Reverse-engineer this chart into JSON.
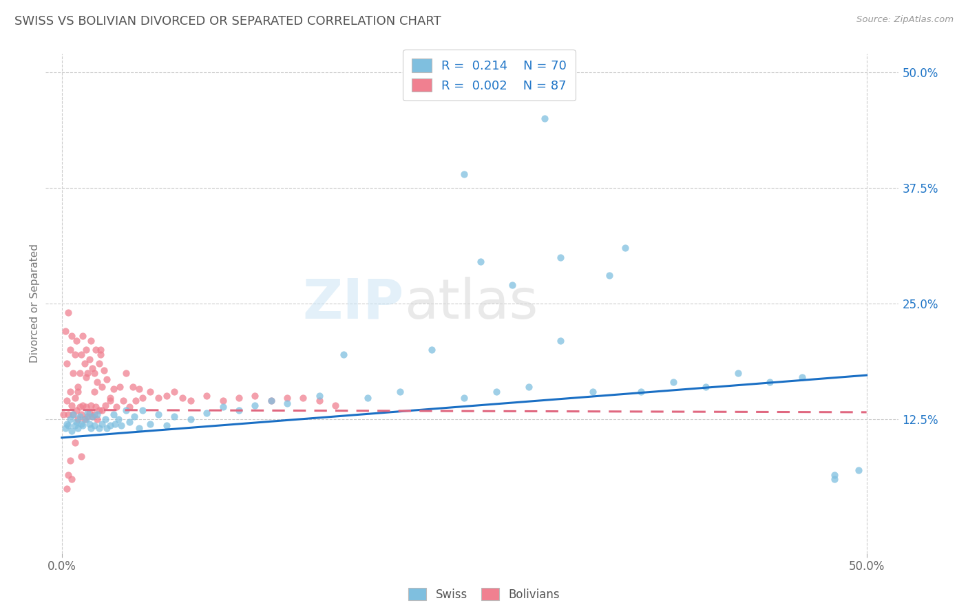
{
  "title": "SWISS VS BOLIVIAN DIVORCED OR SEPARATED CORRELATION CHART",
  "source_text": "Source: ZipAtlas.com",
  "ylabel": "Divorced or Separated",
  "xlim": [
    -0.01,
    0.52
  ],
  "ylim": [
    -0.02,
    0.52
  ],
  "xtick_values": [
    0.0,
    0.125,
    0.25,
    0.375,
    0.5
  ],
  "xtick_show": [
    0.0,
    0.5
  ],
  "ytick_values": [
    0.125,
    0.25,
    0.375,
    0.5
  ],
  "ytick_labels": [
    "12.5%",
    "25.0%",
    "37.5%",
    "50.0%"
  ],
  "swiss_color": "#7fbfdf",
  "bolivian_color": "#f08090",
  "swiss_line_color": "#1a6fc4",
  "bolivian_line_color": "#e06880",
  "swiss_R": "0.214",
  "swiss_N": "70",
  "bolivian_R": "0.002",
  "bolivian_N": "87",
  "legend_color": "#2176c7",
  "background_color": "#ffffff",
  "grid_color": "#cccccc",
  "title_color": "#555555",
  "swiss_x": [
    0.002,
    0.003,
    0.004,
    0.005,
    0.006,
    0.007,
    0.008,
    0.009,
    0.01,
    0.011,
    0.012,
    0.013,
    0.015,
    0.016,
    0.017,
    0.018,
    0.019,
    0.02,
    0.022,
    0.023,
    0.025,
    0.027,
    0.028,
    0.03,
    0.032,
    0.033,
    0.035,
    0.037,
    0.04,
    0.042,
    0.045,
    0.048,
    0.05,
    0.055,
    0.06,
    0.065,
    0.07,
    0.08,
    0.09,
    0.1,
    0.11,
    0.12,
    0.13,
    0.14,
    0.16,
    0.175,
    0.19,
    0.21,
    0.23,
    0.25,
    0.27,
    0.29,
    0.31,
    0.33,
    0.36,
    0.38,
    0.4,
    0.42,
    0.44,
    0.46,
    0.48,
    0.495,
    0.26,
    0.28,
    0.31,
    0.34,
    0.25,
    0.3,
    0.35,
    0.48
  ],
  "swiss_y": [
    0.115,
    0.12,
    0.118,
    0.125,
    0.112,
    0.13,
    0.118,
    0.122,
    0.115,
    0.128,
    0.12,
    0.118,
    0.125,
    0.132,
    0.12,
    0.115,
    0.128,
    0.118,
    0.13,
    0.115,
    0.12,
    0.125,
    0.115,
    0.118,
    0.13,
    0.12,
    0.125,
    0.118,
    0.135,
    0.122,
    0.128,
    0.115,
    0.135,
    0.12,
    0.13,
    0.118,
    0.128,
    0.125,
    0.132,
    0.138,
    0.135,
    0.14,
    0.145,
    0.142,
    0.15,
    0.195,
    0.148,
    0.155,
    0.2,
    0.148,
    0.155,
    0.16,
    0.21,
    0.155,
    0.155,
    0.165,
    0.16,
    0.175,
    0.165,
    0.17,
    0.06,
    0.07,
    0.295,
    0.27,
    0.3,
    0.28,
    0.39,
    0.45,
    0.31,
    0.065
  ],
  "bolivian_x": [
    0.001,
    0.002,
    0.003,
    0.003,
    0.004,
    0.004,
    0.005,
    0.005,
    0.006,
    0.006,
    0.007,
    0.007,
    0.008,
    0.008,
    0.009,
    0.009,
    0.01,
    0.01,
    0.011,
    0.011,
    0.012,
    0.012,
    0.013,
    0.013,
    0.014,
    0.014,
    0.015,
    0.015,
    0.016,
    0.016,
    0.017,
    0.017,
    0.018,
    0.018,
    0.019,
    0.019,
    0.02,
    0.02,
    0.021,
    0.021,
    0.022,
    0.022,
    0.023,
    0.023,
    0.024,
    0.025,
    0.026,
    0.027,
    0.028,
    0.03,
    0.032,
    0.034,
    0.036,
    0.038,
    0.04,
    0.042,
    0.044,
    0.046,
    0.048,
    0.05,
    0.055,
    0.06,
    0.065,
    0.07,
    0.075,
    0.08,
    0.09,
    0.1,
    0.11,
    0.12,
    0.13,
    0.14,
    0.15,
    0.16,
    0.17,
    0.01,
    0.015,
    0.02,
    0.025,
    0.03,
    0.003,
    0.004,
    0.005,
    0.006,
    0.008,
    0.012,
    0.024
  ],
  "bolivian_y": [
    0.13,
    0.22,
    0.145,
    0.185,
    0.24,
    0.13,
    0.2,
    0.155,
    0.215,
    0.14,
    0.175,
    0.13,
    0.195,
    0.148,
    0.21,
    0.135,
    0.155,
    0.125,
    0.175,
    0.138,
    0.195,
    0.13,
    0.215,
    0.14,
    0.185,
    0.125,
    0.2,
    0.138,
    0.175,
    0.128,
    0.19,
    0.132,
    0.21,
    0.14,
    0.18,
    0.128,
    0.175,
    0.13,
    0.2,
    0.138,
    0.165,
    0.125,
    0.185,
    0.135,
    0.2,
    0.16,
    0.178,
    0.14,
    0.168,
    0.148,
    0.158,
    0.138,
    0.16,
    0.145,
    0.175,
    0.138,
    0.16,
    0.145,
    0.158,
    0.148,
    0.155,
    0.148,
    0.15,
    0.155,
    0.148,
    0.145,
    0.15,
    0.145,
    0.148,
    0.15,
    0.145,
    0.148,
    0.148,
    0.145,
    0.14,
    0.16,
    0.17,
    0.155,
    0.135,
    0.145,
    0.05,
    0.065,
    0.08,
    0.06,
    0.1,
    0.085,
    0.195
  ]
}
